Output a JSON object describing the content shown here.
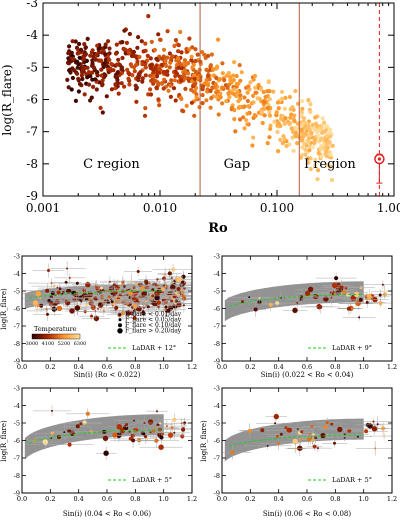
{
  "chart_data": [
    {
      "id": "top",
      "type": "scatter",
      "xlabel": "Ro",
      "ylabel": "log(R_flare)",
      "x_scale": "log",
      "xlim": [
        0.001,
        1.0
      ],
      "ylim": [
        -9,
        -3
      ],
      "x_ticks": [
        {
          "v": 0.001,
          "label": "0.001"
        },
        {
          "v": 0.01,
          "label": "0.010"
        },
        {
          "v": 0.1,
          "label": "0.100"
        },
        {
          "v": 1.0,
          "label": "1.000"
        }
      ],
      "y_ticks": [
        -9,
        -8,
        -7,
        -6,
        -5,
        -4,
        -3
      ],
      "region_labels": [
        {
          "text": "C region",
          "x": 0.0022,
          "y": -8.0
        },
        {
          "text": "Gap",
          "x": 0.035,
          "y": -8.0
        },
        {
          "text": "I region",
          "x": 0.17,
          "y": -8.0
        }
      ],
      "boundaries": [
        {
          "x": 0.022,
          "style": "solid"
        },
        {
          "x": 0.155,
          "style": "solid"
        },
        {
          "x": 0.75,
          "style": "dashed"
        }
      ],
      "sun_marker": {
        "x": 0.75,
        "y": -7.85,
        "yerr_low": -8.6,
        "yerr_high": -7.7
      },
      "trend": [
        [
          0.001,
          -4.9
        ],
        [
          0.01,
          -5.0
        ],
        [
          0.022,
          -5.3
        ],
        [
          0.05,
          -5.9
        ],
        [
          0.1,
          -6.5
        ],
        [
          0.2,
          -7.1
        ],
        [
          0.3,
          -7.5
        ]
      ],
      "scatter_sd": 0.45,
      "n_points": 900,
      "grid": false
    },
    {
      "id": "p1",
      "type": "scatter",
      "xlabel": "Sin(i) (Ro < 0.022)",
      "ylabel": "log(R_flare)",
      "xlim": [
        0.0,
        1.2
      ],
      "ylim": [
        -9,
        -3
      ],
      "x_ticks": [
        0,
        0.2,
        0.4,
        0.6,
        0.8,
        1.0,
        1.2
      ],
      "y_ticks": [
        -9,
        -8,
        -7,
        -6,
        -5,
        -4,
        -3
      ],
      "band": {
        "center_low": -5.7,
        "center_high": -5.05,
        "halfwidth": 0.45
      },
      "model_curve": {
        "low": -5.6,
        "high": -5.0
      },
      "model_label": "LaDAR + 12°",
      "center": -5.3,
      "spread": 0.5,
      "n_points": 360,
      "legend": {
        "entries": [
          "F_flare < 0.01/day",
          "F_flare < 0.05/day",
          "F_flare < 0.10/day",
          "F_flare > 0.20/day"
        ],
        "temperature_title": "Temperature",
        "temperature_ticks": [
          "3000",
          "4100",
          "5200",
          "6300"
        ],
        "placement": "bottom-center"
      }
    },
    {
      "id": "p2",
      "type": "scatter",
      "xlabel": "Sin(i) (0.022 < Ro < 0.04)",
      "ylabel": "",
      "xlim": [
        0.0,
        1.2
      ],
      "ylim": [
        -9,
        -3
      ],
      "x_ticks": [
        0,
        0.2,
        0.4,
        0.6,
        0.8,
        1.0,
        1.2
      ],
      "y_ticks": [
        -9,
        -8,
        -7,
        -6,
        -5,
        -4,
        -3
      ],
      "band": {
        "center_low": -6.4,
        "center_high": -5.05,
        "halfwidth": 0.6
      },
      "model_curve": {
        "low": -6.2,
        "high": -5.2
      },
      "model_label": "LaDAR + 9°",
      "center": -5.4,
      "spread": 0.45,
      "n_points": 55
    },
    {
      "id": "p3",
      "type": "scatter",
      "xlabel": "Sin(i) (0.04 < Ro < 0.06)",
      "ylabel": "log(R_flare)",
      "xlim": [
        0.0,
        1.2
      ],
      "ylim": [
        -9,
        -3
      ],
      "x_ticks": [
        0,
        0.2,
        0.4,
        0.6,
        0.8,
        1.0,
        1.2
      ],
      "y_ticks": [
        -9,
        -8,
        -7,
        -6,
        -5,
        -4,
        -3
      ],
      "band": {
        "center_low": -6.8,
        "center_high": -5.1,
        "halfwidth": 0.6
      },
      "model_curve": {
        "low": -6.5,
        "high": -5.4
      },
      "model_label": "LaDAR + 5°",
      "center": -5.5,
      "spread": 0.45,
      "n_points": 60
    },
    {
      "id": "p4",
      "type": "scatter",
      "xlabel": "Sin(i) (0.06 < Ro < 0.08)",
      "ylabel": "log(R_flare)",
      "xlim": [
        0.0,
        1.2
      ],
      "ylim": [
        -9,
        -3
      ],
      "x_ticks": [
        0,
        0.2,
        0.4,
        0.6,
        0.8,
        1.0,
        1.2
      ],
      "y_ticks": [
        -9,
        -8,
        -7,
        -6,
        -5,
        -4,
        -3
      ],
      "band": {
        "center_low": -6.9,
        "center_high": -5.35,
        "halfwidth": 0.6
      },
      "model_curve": {
        "low": -6.6,
        "high": -5.7
      },
      "model_label": "LaDAR + 5°",
      "center": -5.7,
      "spread": 0.4,
      "n_points": 50
    }
  ],
  "colors": {
    "cool": "#2a0000",
    "mid": "#b02a00",
    "warm": "#ff9a2a",
    "hot": "#ffe0a0",
    "boundary": "#b45a3c",
    "sun": "#e02020",
    "band": "#808080",
    "model": "#22cc22",
    "errorbar": "#a8a8a8"
  }
}
